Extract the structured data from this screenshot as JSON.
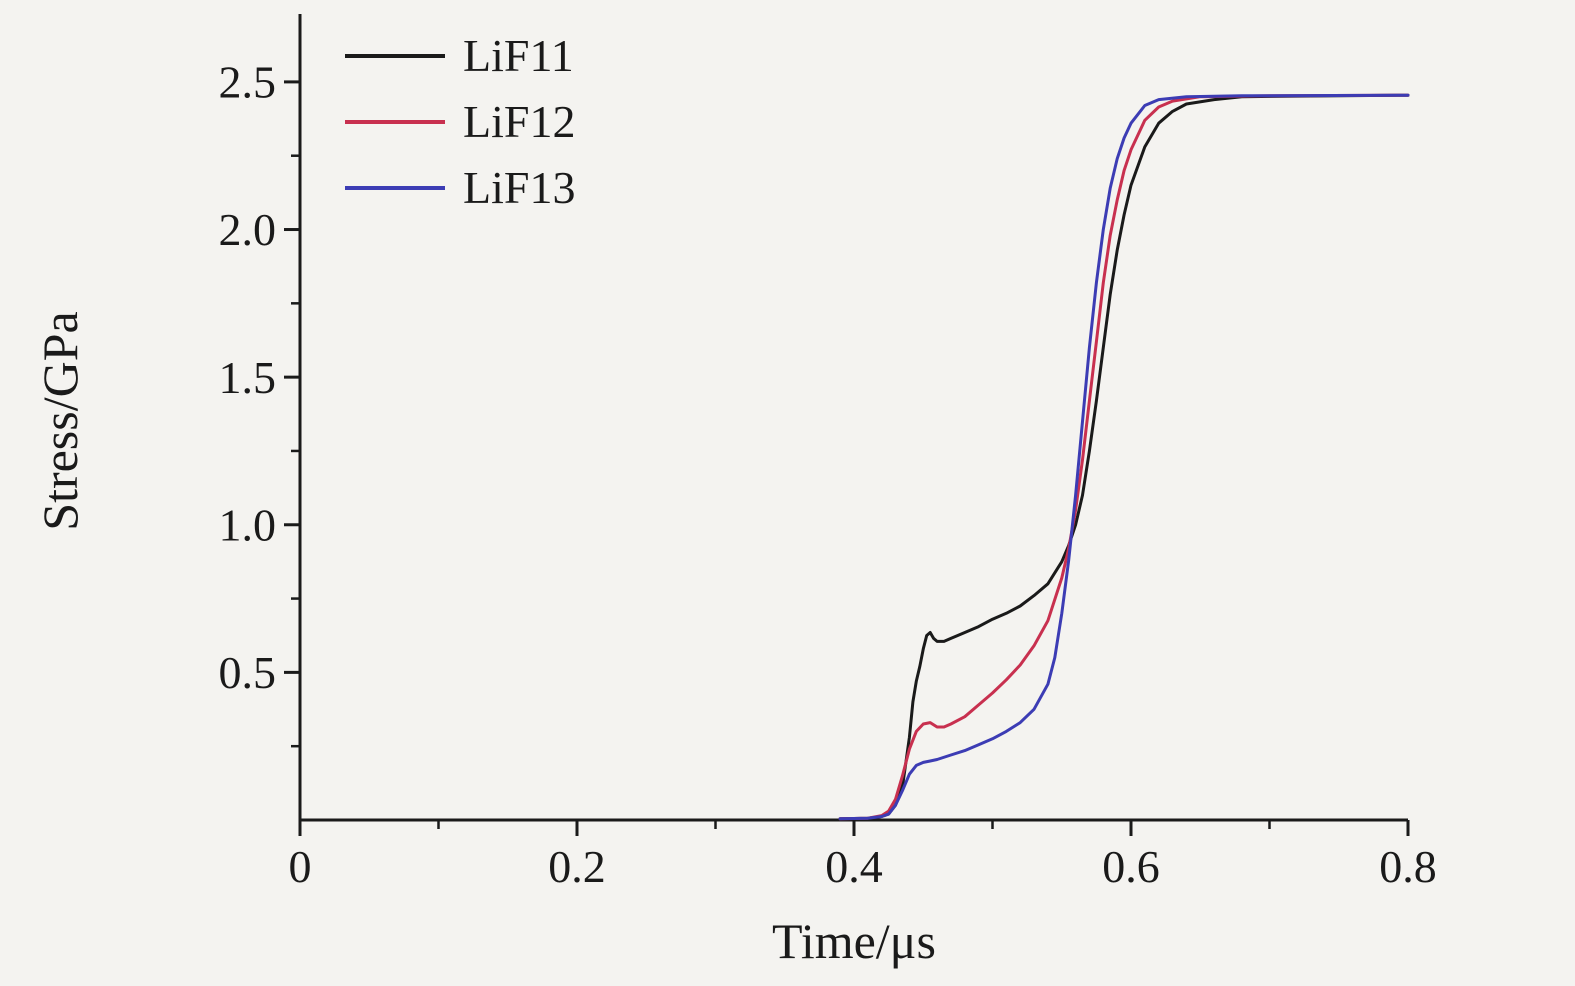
{
  "figure": {
    "background": "#f4f3f0",
    "ink_color": "#1a1a1a"
  },
  "chart_data": {
    "type": "line",
    "title": "",
    "xlabel": "Time/μs",
    "ylabel": "Stress/GPa",
    "xlim": [
      0,
      0.8
    ],
    "ylim": [
      0,
      2.73
    ],
    "grid": false,
    "legend_position": "top-left",
    "x_major_ticks": [
      0,
      0.2,
      0.4,
      0.6,
      0.8
    ],
    "x_major_labels": [
      "0",
      "0.2",
      "0.4",
      "0.6",
      "0.8"
    ],
    "x_minor_ticks": [
      0.1,
      0.3,
      0.5,
      0.7
    ],
    "y_major_ticks": [
      0.5,
      1.0,
      1.5,
      2.0,
      2.5
    ],
    "y_major_labels": [
      "0.5",
      "1.0",
      "1.5",
      "2.0",
      "2.5"
    ],
    "y_minor_ticks": [
      0.25,
      0.75,
      1.25,
      1.75,
      2.25
    ],
    "series": [
      {
        "name": "LiF11",
        "color": "#1a1a1a",
        "points": [
          [
            0.39,
            0.004
          ],
          [
            0.41,
            0.006
          ],
          [
            0.42,
            0.012
          ],
          [
            0.425,
            0.02
          ],
          [
            0.43,
            0.05
          ],
          [
            0.4355,
            0.13
          ],
          [
            0.44,
            0.28
          ],
          [
            0.4425,
            0.4
          ],
          [
            0.445,
            0.47
          ],
          [
            0.4475,
            0.52
          ],
          [
            0.45,
            0.58
          ],
          [
            0.4525,
            0.625
          ],
          [
            0.455,
            0.635
          ],
          [
            0.4575,
            0.615
          ],
          [
            0.46,
            0.605
          ],
          [
            0.465,
            0.605
          ],
          [
            0.47,
            0.615
          ],
          [
            0.48,
            0.635
          ],
          [
            0.49,
            0.655
          ],
          [
            0.5,
            0.68
          ],
          [
            0.51,
            0.7
          ],
          [
            0.52,
            0.725
          ],
          [
            0.53,
            0.76
          ],
          [
            0.54,
            0.8
          ],
          [
            0.55,
            0.875
          ],
          [
            0.555,
            0.93
          ],
          [
            0.56,
            1.0
          ],
          [
            0.565,
            1.1
          ],
          [
            0.57,
            1.25
          ],
          [
            0.575,
            1.42
          ],
          [
            0.58,
            1.6
          ],
          [
            0.585,
            1.78
          ],
          [
            0.59,
            1.93
          ],
          [
            0.595,
            2.05
          ],
          [
            0.6,
            2.15
          ],
          [
            0.61,
            2.28
          ],
          [
            0.62,
            2.36
          ],
          [
            0.63,
            2.4
          ],
          [
            0.64,
            2.425
          ],
          [
            0.66,
            2.44
          ],
          [
            0.68,
            2.45
          ],
          [
            0.72,
            2.452
          ],
          [
            0.8,
            2.455
          ]
        ]
      },
      {
        "name": "LiF12",
        "color": "#c8304f",
        "points": [
          [
            0.39,
            0.004
          ],
          [
            0.41,
            0.006
          ],
          [
            0.42,
            0.015
          ],
          [
            0.425,
            0.03
          ],
          [
            0.43,
            0.07
          ],
          [
            0.435,
            0.15
          ],
          [
            0.44,
            0.24
          ],
          [
            0.445,
            0.3
          ],
          [
            0.45,
            0.325
          ],
          [
            0.455,
            0.33
          ],
          [
            0.46,
            0.315
          ],
          [
            0.465,
            0.315
          ],
          [
            0.47,
            0.325
          ],
          [
            0.48,
            0.35
          ],
          [
            0.49,
            0.39
          ],
          [
            0.5,
            0.43
          ],
          [
            0.51,
            0.475
          ],
          [
            0.52,
            0.525
          ],
          [
            0.53,
            0.59
          ],
          [
            0.54,
            0.675
          ],
          [
            0.55,
            0.82
          ],
          [
            0.555,
            0.92
          ],
          [
            0.56,
            1.05
          ],
          [
            0.565,
            1.22
          ],
          [
            0.57,
            1.42
          ],
          [
            0.575,
            1.62
          ],
          [
            0.58,
            1.82
          ],
          [
            0.585,
            1.98
          ],
          [
            0.59,
            2.1
          ],
          [
            0.595,
            2.2
          ],
          [
            0.6,
            2.27
          ],
          [
            0.61,
            2.37
          ],
          [
            0.62,
            2.415
          ],
          [
            0.63,
            2.435
          ],
          [
            0.65,
            2.45
          ],
          [
            0.7,
            2.453
          ],
          [
            0.8,
            2.455
          ]
        ]
      },
      {
        "name": "LiF13",
        "color": "#3c3cb4",
        "points": [
          [
            0.39,
            0.004
          ],
          [
            0.41,
            0.006
          ],
          [
            0.42,
            0.012
          ],
          [
            0.425,
            0.02
          ],
          [
            0.43,
            0.05
          ],
          [
            0.435,
            0.1
          ],
          [
            0.44,
            0.155
          ],
          [
            0.445,
            0.185
          ],
          [
            0.45,
            0.195
          ],
          [
            0.455,
            0.2
          ],
          [
            0.46,
            0.205
          ],
          [
            0.47,
            0.22
          ],
          [
            0.48,
            0.235
          ],
          [
            0.49,
            0.255
          ],
          [
            0.5,
            0.275
          ],
          [
            0.51,
            0.3
          ],
          [
            0.52,
            0.33
          ],
          [
            0.53,
            0.375
          ],
          [
            0.54,
            0.46
          ],
          [
            0.545,
            0.55
          ],
          [
            0.55,
            0.7
          ],
          [
            0.555,
            0.88
          ],
          [
            0.56,
            1.1
          ],
          [
            0.565,
            1.35
          ],
          [
            0.57,
            1.6
          ],
          [
            0.575,
            1.82
          ],
          [
            0.58,
            2.0
          ],
          [
            0.585,
            2.14
          ],
          [
            0.59,
            2.24
          ],
          [
            0.595,
            2.31
          ],
          [
            0.6,
            2.36
          ],
          [
            0.61,
            2.42
          ],
          [
            0.62,
            2.44
          ],
          [
            0.64,
            2.45
          ],
          [
            0.68,
            2.453
          ],
          [
            0.8,
            2.455
          ]
        ]
      }
    ]
  }
}
